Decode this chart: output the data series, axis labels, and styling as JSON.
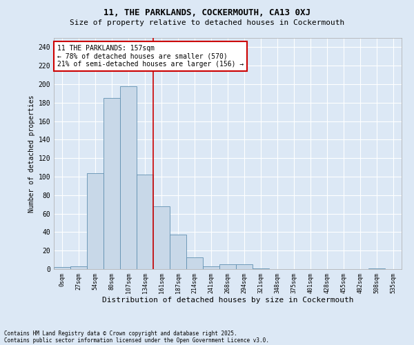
{
  "title1": "11, THE PARKLANDS, COCKERMOUTH, CA13 0XJ",
  "title2": "Size of property relative to detached houses in Cockermouth",
  "xlabel": "Distribution of detached houses by size in Cockermouth",
  "ylabel": "Number of detached properties",
  "bin_labels": [
    "0sqm",
    "27sqm",
    "54sqm",
    "80sqm",
    "107sqm",
    "134sqm",
    "161sqm",
    "187sqm",
    "214sqm",
    "241sqm",
    "268sqm",
    "294sqm",
    "321sqm",
    "348sqm",
    "375sqm",
    "401sqm",
    "428sqm",
    "455sqm",
    "482sqm",
    "508sqm",
    "535sqm"
  ],
  "bar_values": [
    2,
    3,
    104,
    185,
    198,
    102,
    68,
    37,
    13,
    3,
    5,
    5,
    1,
    0,
    0,
    0,
    0,
    0,
    0,
    1,
    0
  ],
  "bar_color": "#c8d8e8",
  "bar_edge_color": "#6090b0",
  "ylim": [
    0,
    250
  ],
  "yticks": [
    0,
    20,
    40,
    60,
    80,
    100,
    120,
    140,
    160,
    180,
    200,
    220,
    240
  ],
  "vline_x": 5.5,
  "annotation_title": "11 THE PARKLANDS: 157sqm",
  "annotation_line1": "← 78% of detached houses are smaller (570)",
  "annotation_line2": "21% of semi-detached houses are larger (156) →",
  "footer_line1": "Contains HM Land Registry data © Crown copyright and database right 2025.",
  "footer_line2": "Contains public sector information licensed under the Open Government Licence v3.0.",
  "bg_color": "#dce8f5",
  "plot_bg_color": "#dce8f5",
  "grid_color": "#ffffff",
  "annotation_box_color": "#ffffff",
  "annotation_border_color": "#cc0000",
  "vline_color": "#cc0000",
  "title1_fontsize": 9,
  "title2_fontsize": 8,
  "ylabel_fontsize": 7,
  "xlabel_fontsize": 8,
  "ytick_fontsize": 7,
  "xtick_fontsize": 6,
  "annot_fontsize": 7,
  "footer_fontsize": 5.5
}
